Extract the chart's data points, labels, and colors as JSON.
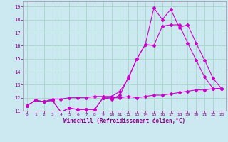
{
  "xlabel": "Windchill (Refroidissement éolien,°C)",
  "bg_color": "#cce8f0",
  "grid_color": "#aad8cc",
  "line_color": "#cc00cc",
  "xlim": [
    -0.5,
    23.5
  ],
  "ylim": [
    11,
    19.4
  ],
  "xticks": [
    0,
    1,
    2,
    3,
    4,
    5,
    6,
    7,
    8,
    9,
    10,
    11,
    12,
    13,
    14,
    15,
    16,
    17,
    18,
    19,
    20,
    21,
    22,
    23
  ],
  "yticks": [
    11,
    12,
    13,
    14,
    15,
    16,
    17,
    18,
    19
  ],
  "line1_y": [
    11.4,
    11.8,
    11.7,
    11.8,
    10.9,
    11.2,
    11.1,
    11.1,
    11.1,
    12.0,
    12.0,
    12.0,
    12.1,
    12.0,
    12.1,
    12.2,
    12.2,
    12.3,
    12.4,
    12.5,
    12.6,
    12.6,
    12.7,
    12.7
  ],
  "line2_y": [
    11.4,
    11.8,
    11.7,
    11.9,
    11.9,
    12.0,
    12.0,
    12.0,
    12.1,
    12.1,
    12.1,
    12.5,
    13.5,
    15.0,
    16.1,
    16.0,
    17.5,
    17.6,
    17.6,
    16.2,
    14.9,
    13.6,
    12.7,
    12.7
  ],
  "line3_y": [
    11.4,
    11.8,
    11.7,
    11.8,
    10.9,
    11.2,
    11.1,
    11.1,
    11.1,
    12.0,
    11.9,
    12.2,
    13.6,
    15.0,
    16.1,
    18.9,
    18.0,
    18.8,
    17.4,
    17.6,
    16.2,
    14.9,
    13.5,
    12.7
  ]
}
